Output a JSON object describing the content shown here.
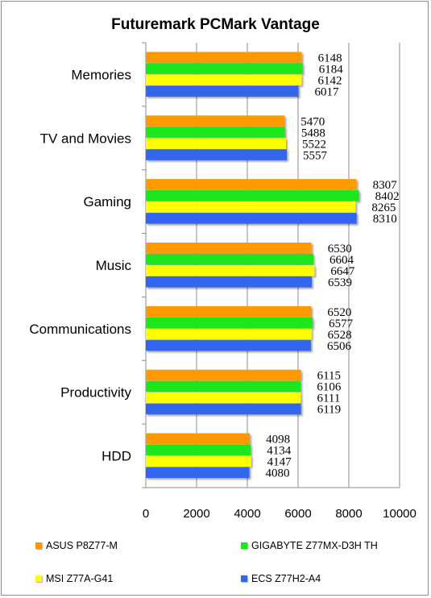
{
  "chart_data": {
    "type": "bar",
    "orientation": "horizontal",
    "title": "Futuremark PCMark Vantage",
    "categories": [
      "Memories",
      "TV and Movies",
      "Gaming",
      "Music",
      "Communications",
      "Productivity",
      "HDD"
    ],
    "series": [
      {
        "name": "ASUS P8Z77-M",
        "color": "#ff9900",
        "values": [
          6148,
          5470,
          8307,
          6530,
          6520,
          6115,
          4098
        ]
      },
      {
        "name": "GIGABYTE Z77MX-D3H TH",
        "color": "#1ee61e",
        "values": [
          6184,
          5488,
          8402,
          6604,
          6577,
          6106,
          4134
        ]
      },
      {
        "name": "MSI Z77A-G41",
        "color": "#ffff00",
        "values": [
          6142,
          5522,
          8265,
          6647,
          6528,
          6111,
          4147
        ]
      },
      {
        "name": "ECS Z77H2-A4",
        "color": "#3366ee",
        "values": [
          6017,
          5557,
          8310,
          6539,
          6506,
          6119,
          4080
        ]
      }
    ],
    "xlim": [
      0,
      10000
    ],
    "xticks": [
      "0",
      "2000",
      "4000",
      "6000",
      "8000",
      "10000"
    ],
    "grid": true,
    "legend_position": "bottom"
  }
}
